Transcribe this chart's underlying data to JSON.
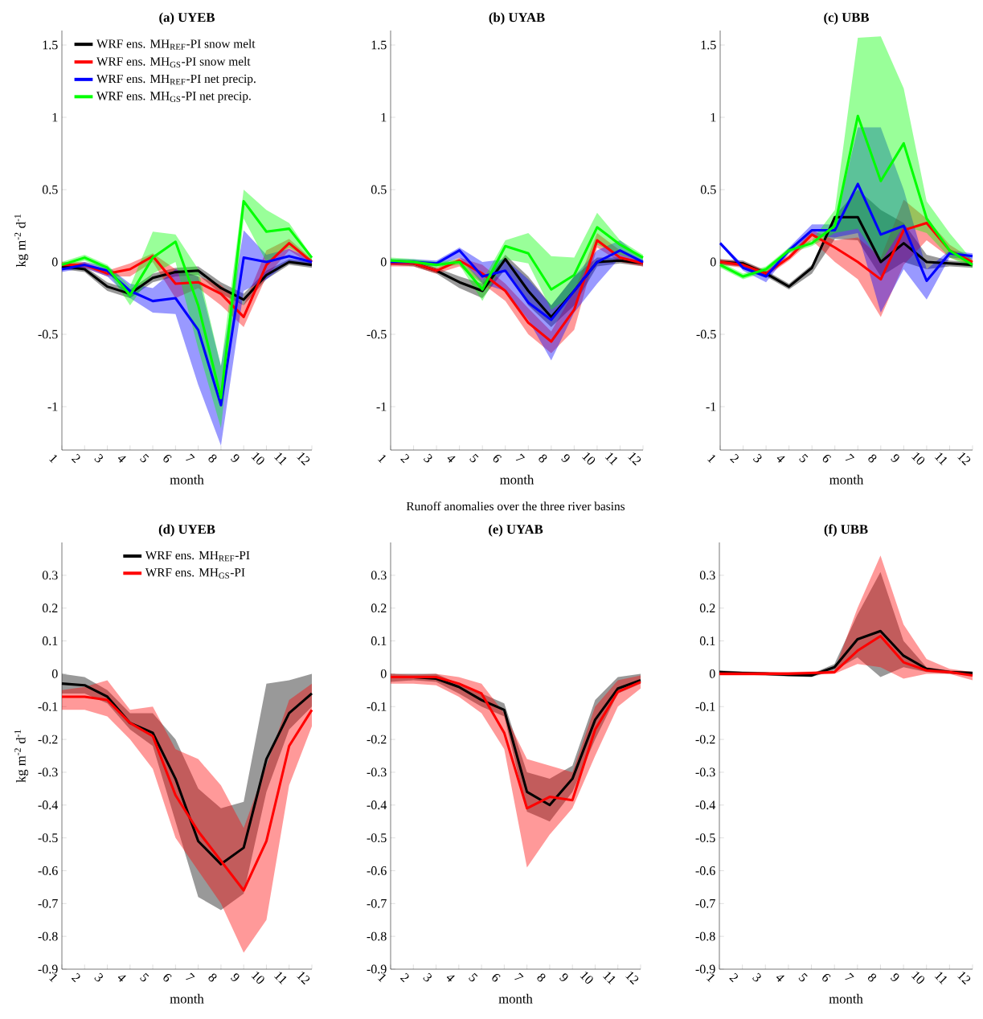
{
  "chart_data": [
    {
      "type": "line",
      "title": "(a) UYEB",
      "xlabel": "month",
      "ylabel": "kg m$^{-2}$ d$^{-1}$",
      "x": [
        1,
        2,
        3,
        4,
        5,
        6,
        7,
        8,
        9,
        10,
        11,
        12
      ],
      "xlim": [
        1,
        12
      ],
      "xticks": [
        1,
        2,
        3,
        4,
        5,
        6,
        7,
        8,
        9,
        10,
        11,
        12
      ],
      "ylim": [
        -1.3,
        1.6
      ],
      "yticks": [
        -1,
        -0.5,
        0,
        0.5,
        1,
        1.5
      ],
      "legend": "top left",
      "series": [
        {
          "name": "WRF ens. MH$_{REF}$-PI snow melt",
          "color": "#000000",
          "values": [
            -0.03,
            -0.05,
            -0.17,
            -0.22,
            -0.11,
            -0.07,
            -0.06,
            -0.18,
            -0.26,
            -0.09,
            0.0,
            -0.02
          ],
          "lower": [
            -0.05,
            -0.07,
            -0.2,
            -0.25,
            -0.14,
            -0.1,
            -0.09,
            -0.22,
            -0.3,
            -0.12,
            -0.02,
            -0.04
          ],
          "upper": [
            -0.01,
            -0.03,
            -0.14,
            -0.19,
            -0.08,
            -0.04,
            -0.03,
            -0.14,
            -0.22,
            -0.06,
            0.02,
            0.0
          ]
        },
        {
          "name": "WRF ens. MH$_{GS}$-PI snow melt",
          "color": "#ff0000",
          "values": [
            -0.02,
            -0.02,
            -0.08,
            -0.05,
            0.04,
            -0.15,
            -0.14,
            -0.22,
            -0.38,
            -0.02,
            0.13,
            0.0
          ],
          "lower": [
            -0.04,
            -0.04,
            -0.1,
            -0.1,
            0.0,
            -0.25,
            -0.18,
            -0.3,
            -0.45,
            -0.1,
            0.08,
            -0.02
          ],
          "upper": [
            0.0,
            0.0,
            -0.06,
            -0.01,
            0.06,
            -0.05,
            -0.1,
            -0.16,
            -0.3,
            0.08,
            0.16,
            0.02
          ]
        },
        {
          "name": "WRF ens. MH$_{REF}$-PI net precip.",
          "color": "#0000ff",
          "values": [
            -0.05,
            -0.02,
            -0.06,
            -0.2,
            -0.27,
            -0.25,
            -0.47,
            -0.99,
            0.03,
            0.0,
            0.04,
            0.0
          ],
          "lower": [
            -0.07,
            -0.04,
            -0.1,
            -0.25,
            -0.35,
            -0.36,
            -0.85,
            -1.27,
            -0.2,
            -0.12,
            0.0,
            -0.02
          ],
          "upper": [
            -0.03,
            0.0,
            -0.03,
            -0.15,
            -0.18,
            -0.05,
            -0.1,
            -0.72,
            0.22,
            0.05,
            0.09,
            0.02
          ]
        },
        {
          "name": "WRF ens. MH$_{GS}$-PI net precip.",
          "color": "#00ff00",
          "values": [
            -0.02,
            0.03,
            -0.04,
            -0.23,
            0.03,
            0.14,
            -0.3,
            -0.94,
            0.42,
            0.21,
            0.23,
            0.03
          ],
          "lower": [
            -0.04,
            0.01,
            -0.06,
            -0.3,
            -0.08,
            0.0,
            -0.6,
            -1.15,
            0.3,
            0.0,
            0.1,
            0.01
          ],
          "upper": [
            0.0,
            0.05,
            -0.02,
            -0.17,
            0.21,
            0.19,
            -0.05,
            -0.72,
            0.5,
            0.36,
            0.27,
            0.04
          ]
        }
      ]
    },
    {
      "type": "line",
      "title": "(b) UYAB",
      "xlabel": "month",
      "x": [
        1,
        2,
        3,
        4,
        5,
        6,
        7,
        8,
        9,
        10,
        11,
        12
      ],
      "xlim": [
        1,
        12
      ],
      "xticks": [
        1,
        2,
        3,
        4,
        5,
        6,
        7,
        8,
        9,
        10,
        11,
        12
      ],
      "ylim": [
        -1.3,
        1.6
      ],
      "yticks": [
        -1,
        -0.5,
        0,
        0.5,
        1,
        1.5
      ],
      "series": [
        {
          "color": "#000000",
          "values": [
            0.0,
            -0.01,
            -0.06,
            -0.14,
            -0.2,
            0.02,
            -0.2,
            -0.38,
            -0.2,
            0.0,
            0.01,
            -0.01
          ],
          "lower": [
            -0.02,
            -0.03,
            -0.08,
            -0.18,
            -0.25,
            -0.05,
            -0.3,
            -0.45,
            -0.3,
            -0.03,
            -0.01,
            -0.03
          ],
          "upper": [
            0.02,
            0.01,
            -0.04,
            -0.1,
            -0.15,
            0.05,
            -0.1,
            -0.3,
            -0.1,
            0.03,
            0.03,
            0.01
          ]
        },
        {
          "color": "#ff0000",
          "values": [
            -0.01,
            -0.01,
            -0.06,
            0.01,
            -0.08,
            -0.2,
            -0.42,
            -0.55,
            -0.33,
            0.15,
            0.03,
            -0.01
          ],
          "lower": [
            -0.03,
            -0.03,
            -0.08,
            -0.03,
            -0.15,
            -0.27,
            -0.5,
            -0.63,
            -0.47,
            0.1,
            0.0,
            -0.03
          ],
          "upper": [
            0.01,
            0.01,
            -0.04,
            0.03,
            -0.02,
            -0.15,
            -0.32,
            -0.48,
            -0.2,
            0.2,
            0.08,
            0.01
          ]
        },
        {
          "color": "#0000ff",
          "values": [
            0.0,
            0.0,
            -0.01,
            0.08,
            -0.1,
            -0.06,
            -0.28,
            -0.4,
            -0.2,
            0.0,
            0.08,
            0.0
          ],
          "lower": [
            -0.02,
            -0.02,
            -0.03,
            0.03,
            -0.15,
            -0.2,
            -0.4,
            -0.68,
            -0.35,
            -0.15,
            0.03,
            -0.02
          ],
          "upper": [
            0.02,
            0.02,
            0.01,
            0.1,
            0.0,
            0.02,
            -0.12,
            -0.3,
            -0.1,
            0.08,
            0.15,
            0.02
          ]
        },
        {
          "color": "#00ff00",
          "values": [
            0.01,
            0.0,
            -0.02,
            0.0,
            -0.19,
            0.11,
            0.06,
            -0.19,
            -0.09,
            0.24,
            0.12,
            0.03
          ],
          "lower": [
            -0.01,
            -0.02,
            -0.04,
            -0.02,
            -0.27,
            0.02,
            -0.01,
            -0.33,
            -0.22,
            0.12,
            0.05,
            0.01
          ],
          "upper": [
            0.03,
            0.02,
            0.0,
            0.02,
            -0.13,
            0.15,
            0.2,
            0.04,
            0.03,
            0.34,
            0.15,
            0.05
          ]
        }
      ]
    },
    {
      "type": "line",
      "title": "(c) UBB",
      "xlabel": "month",
      "x": [
        1,
        2,
        3,
        4,
        5,
        6,
        7,
        8,
        9,
        10,
        11,
        12
      ],
      "xlim": [
        1,
        12
      ],
      "xticks": [
        1,
        2,
        3,
        4,
        5,
        6,
        7,
        8,
        9,
        10,
        11,
        12
      ],
      "ylim": [
        -1.3,
        1.6
      ],
      "yticks": [
        -1,
        -0.5,
        0,
        0.5,
        1,
        1.5
      ],
      "series": [
        {
          "color": "#000000",
          "values": [
            0.0,
            -0.01,
            -0.08,
            -0.17,
            -0.04,
            0.31,
            0.31,
            0.0,
            0.13,
            0.0,
            -0.01,
            -0.02
          ],
          "lower": [
            -0.02,
            -0.03,
            -0.1,
            -0.19,
            -0.08,
            0.16,
            0.15,
            -0.1,
            0.0,
            -0.05,
            -0.03,
            -0.04
          ],
          "upper": [
            0.02,
            0.01,
            -0.06,
            -0.15,
            -0.02,
            0.32,
            0.5,
            0.36,
            0.27,
            0.05,
            0.01,
            0.0
          ]
        },
        {
          "color": "#ff0000",
          "values": [
            0.0,
            -0.02,
            -0.08,
            0.03,
            0.19,
            0.1,
            0.0,
            -0.12,
            0.22,
            0.27,
            0.08,
            0.0
          ],
          "lower": [
            -0.02,
            -0.04,
            -0.1,
            0.01,
            0.15,
            0.0,
            -0.12,
            -0.38,
            -0.02,
            0.15,
            0.03,
            -0.02
          ],
          "upper": [
            0.02,
            0.0,
            -0.06,
            0.05,
            0.22,
            0.15,
            0.17,
            0.03,
            0.43,
            0.3,
            0.12,
            0.02
          ]
        },
        {
          "color": "#0000ff",
          "values": [
            0.13,
            -0.04,
            -0.1,
            0.08,
            0.22,
            0.22,
            0.54,
            0.19,
            0.25,
            -0.13,
            0.06,
            0.04
          ],
          "lower": [
            0.12,
            -0.06,
            -0.14,
            0.06,
            0.18,
            0.17,
            0.2,
            -0.35,
            -0.05,
            -0.26,
            0.03,
            0.02
          ],
          "upper": [
            0.14,
            -0.02,
            -0.07,
            0.1,
            0.26,
            0.26,
            0.93,
            0.93,
            0.5,
            -0.05,
            0.08,
            0.06
          ]
        },
        {
          "color": "#00ff00",
          "values": [
            -0.02,
            -0.1,
            -0.05,
            0.08,
            0.13,
            0.25,
            1.01,
            0.56,
            0.82,
            0.3,
            0.08,
            -0.02
          ],
          "lower": [
            -0.04,
            -0.12,
            -0.07,
            0.06,
            0.11,
            0.2,
            0.23,
            0.0,
            0.25,
            0.2,
            0.03,
            -0.04
          ],
          "upper": [
            0.0,
            -0.08,
            -0.03,
            0.1,
            0.15,
            0.36,
            1.55,
            1.56,
            1.2,
            0.42,
            0.2,
            0.01
          ]
        }
      ]
    },
    {
      "type": "line",
      "title": "(d) UYEB",
      "xlabel": "month",
      "ylabel": "kg m$^{-2}$ d$^{-1}$",
      "x": [
        1,
        2,
        3,
        4,
        5,
        6,
        7,
        8,
        9,
        10,
        11,
        12
      ],
      "xlim": [
        1,
        12
      ],
      "xticks": [
        1,
        2,
        3,
        4,
        5,
        6,
        7,
        8,
        9,
        10,
        11,
        12
      ],
      "ylim": [
        -0.9,
        0.4
      ],
      "yticks": [
        -0.9,
        -0.8,
        -0.7,
        -0.6,
        -0.5,
        -0.4,
        -0.3,
        -0.2,
        -0.1,
        0,
        0.1,
        0.2,
        0.3
      ],
      "legend": "top",
      "series": [
        {
          "name": "WRF ens. MH$_{REF}$-PI",
          "color": "#000000",
          "values": [
            -0.03,
            -0.035,
            -0.07,
            -0.15,
            -0.18,
            -0.32,
            -0.51,
            -0.58,
            -0.53,
            -0.26,
            -0.12,
            -0.06
          ],
          "lower": [
            -0.06,
            -0.06,
            -0.09,
            -0.17,
            -0.22,
            -0.45,
            -0.68,
            -0.72,
            -0.67,
            -0.36,
            -0.17,
            -0.1
          ],
          "upper": [
            0.0,
            -0.01,
            -0.05,
            -0.12,
            -0.12,
            -0.2,
            -0.35,
            -0.41,
            -0.39,
            -0.03,
            -0.02,
            0.0
          ]
        },
        {
          "name": "WRF ens. MH$_{GS}$-PI",
          "color": "#ff0000",
          "values": [
            -0.07,
            -0.07,
            -0.08,
            -0.15,
            -0.19,
            -0.37,
            -0.48,
            -0.57,
            -0.66,
            -0.51,
            -0.22,
            -0.11
          ],
          "lower": [
            -0.11,
            -0.11,
            -0.13,
            -0.2,
            -0.29,
            -0.5,
            -0.6,
            -0.7,
            -0.85,
            -0.75,
            -0.34,
            -0.16
          ],
          "upper": [
            -0.05,
            -0.04,
            -0.02,
            -0.11,
            -0.1,
            -0.23,
            -0.26,
            -0.34,
            -0.47,
            -0.28,
            -0.08,
            -0.03
          ]
        }
      ]
    },
    {
      "type": "line",
      "title": "(e) UYAB",
      "xlabel": "month",
      "x": [
        1,
        2,
        3,
        4,
        5,
        6,
        7,
        8,
        9,
        10,
        11,
        12
      ],
      "xlim": [
        1,
        12
      ],
      "xticks": [
        1,
        2,
        3,
        4,
        5,
        6,
        7,
        8,
        9,
        10,
        11,
        12
      ],
      "ylim": [
        -0.9,
        0.4
      ],
      "yticks": [
        -0.9,
        -0.8,
        -0.7,
        -0.6,
        -0.5,
        -0.4,
        -0.3,
        -0.2,
        -0.1,
        0,
        0.1,
        0.2,
        0.3
      ],
      "annotations": [
        "Runoff anomalies over the three river basins"
      ],
      "series": [
        {
          "color": "#000000",
          "values": [
            -0.01,
            -0.01,
            -0.015,
            -0.04,
            -0.08,
            -0.11,
            -0.36,
            -0.4,
            -0.32,
            -0.14,
            -0.045,
            -0.02
          ],
          "lower": [
            -0.025,
            -0.02,
            -0.025,
            -0.06,
            -0.1,
            -0.13,
            -0.42,
            -0.45,
            -0.36,
            -0.2,
            -0.06,
            -0.03
          ],
          "upper": [
            0.0,
            0.0,
            0.0,
            -0.03,
            -0.06,
            -0.09,
            -0.3,
            -0.32,
            -0.28,
            -0.08,
            -0.01,
            0.0
          ]
        },
        {
          "color": "#ff0000",
          "values": [
            -0.01,
            -0.01,
            -0.01,
            -0.03,
            -0.06,
            -0.18,
            -0.41,
            -0.375,
            -0.385,
            -0.17,
            -0.055,
            -0.025
          ],
          "lower": [
            -0.03,
            -0.03,
            -0.035,
            -0.07,
            -0.12,
            -0.23,
            -0.59,
            -0.49,
            -0.41,
            -0.25,
            -0.1,
            -0.045
          ],
          "upper": [
            0.0,
            -0.003,
            0.0,
            -0.01,
            -0.03,
            -0.12,
            -0.26,
            -0.28,
            -0.3,
            -0.1,
            -0.02,
            -0.005
          ]
        }
      ]
    },
    {
      "type": "line",
      "title": "(f) UBB",
      "xlabel": "month",
      "x": [
        1,
        2,
        3,
        4,
        5,
        6,
        7,
        8,
        9,
        10,
        11,
        12
      ],
      "xlim": [
        1,
        12
      ],
      "xticks": [
        1,
        2,
        3,
        4,
        5,
        6,
        7,
        8,
        9,
        10,
        11,
        12
      ],
      "ylim": [
        -0.9,
        0.4
      ],
      "yticks": [
        -0.9,
        -0.8,
        -0.7,
        -0.6,
        -0.5,
        -0.4,
        -0.3,
        -0.2,
        -0.1,
        0,
        0.1,
        0.2,
        0.3
      ],
      "series": [
        {
          "color": "#000000",
          "values": [
            0.005,
            0.002,
            0.0,
            -0.003,
            -0.005,
            0.02,
            0.105,
            0.13,
            0.055,
            0.015,
            0.005,
            0.002
          ],
          "lower": [
            0.0,
            -0.003,
            -0.005,
            -0.008,
            -0.01,
            0.01,
            0.05,
            -0.01,
            0.02,
            0.005,
            0.0,
            -0.003
          ],
          "upper": [
            0.01,
            0.007,
            0.005,
            0.002,
            0.0,
            0.03,
            0.18,
            0.31,
            0.1,
            0.02,
            0.01,
            0.007
          ]
        },
        {
          "color": "#ff0000",
          "values": [
            0.0,
            0.0,
            0.0,
            0.0,
            0.002,
            0.005,
            0.07,
            0.115,
            0.035,
            0.01,
            0.005,
            -0.005
          ],
          "lower": [
            -0.005,
            -0.005,
            -0.005,
            -0.005,
            -0.003,
            0.0,
            0.03,
            0.02,
            -0.015,
            0.0,
            0.0,
            -0.02
          ],
          "upper": [
            0.005,
            0.005,
            0.005,
            0.005,
            0.007,
            0.01,
            0.2,
            0.36,
            0.15,
            0.045,
            0.015,
            0.005
          ]
        }
      ]
    }
  ]
}
